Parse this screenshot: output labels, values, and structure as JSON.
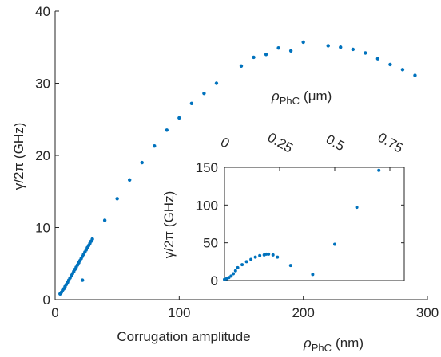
{
  "chart_data": [
    {
      "type": "scatter",
      "xlabel": "Corrugation amplitude",
      "ylabel": "γ/2π (GHz)",
      "xlim": [
        0,
        300
      ],
      "ylim": [
        0,
        40
      ],
      "xticks": [
        0,
        100,
        200,
        300
      ],
      "yticks": [
        0,
        10,
        20,
        30,
        40
      ],
      "xtick_labels": [
        "0",
        "100",
        "200",
        "300"
      ],
      "ytick_labels": [
        "0",
        "10",
        "20",
        "30",
        "40"
      ],
      "grid": false,
      "color": "#0072bd",
      "series": [
        {
          "x": [
            4,
            5,
            6,
            7,
            8,
            9,
            10,
            11,
            12,
            13,
            14,
            15,
            16,
            17,
            18,
            19,
            20,
            21,
            22,
            23,
            24,
            25,
            26,
            27,
            28,
            29,
            30,
            22,
            40,
            50,
            60,
            70,
            80,
            90,
            100,
            110,
            120,
            130,
            150,
            160,
            170,
            180,
            190,
            200,
            220,
            230,
            240,
            250,
            260,
            270,
            280,
            290
          ],
          "y": [
            0.8,
            1.0,
            1.3,
            1.5,
            1.8,
            2.1,
            2.4,
            2.7,
            3.0,
            3.3,
            3.6,
            3.9,
            4.2,
            4.5,
            4.8,
            5.1,
            5.4,
            5.7,
            6.0,
            6.3,
            6.6,
            6.9,
            7.2,
            7.5,
            7.8,
            8.1,
            8.4,
            2.7,
            11.0,
            14.0,
            16.6,
            19.0,
            21.3,
            23.5,
            25.2,
            27.2,
            28.6,
            30.0,
            32.4,
            33.6,
            34.0,
            34.9,
            34.5,
            35.7,
            35.2,
            35.0,
            34.7,
            34.2,
            33.4,
            32.6,
            31.9,
            31.1
          ]
        }
      ]
    },
    {
      "type": "scatter",
      "inset": true,
      "xlabel": "ρPhC (nm)",
      "xlabel_main": "ρ",
      "xlabel_sub": "PhC",
      "xlabel_unit": "(nm)",
      "ylabel": "γ/2π (GHz)",
      "top_xlabel_main": "ρ",
      "top_xlabel_sub": "PhC",
      "top_xlabel_unit": "(μm)",
      "top_xticks": [
        0,
        0.25,
        0.5,
        0.75
      ],
      "top_xtick_labels": [
        "0",
        "0.25",
        "0.5",
        "0.75"
      ],
      "ylim": [
        0,
        150
      ],
      "yticks": [
        0,
        50,
        100,
        150
      ],
      "ytick_labels": [
        "0",
        "50",
        "100",
        "150"
      ],
      "grid": false,
      "color": "#0072bd",
      "series": [
        {
          "x": [
            0,
            0.01,
            0.02,
            0.03,
            0.04,
            0.05,
            0.06,
            0.08,
            0.1,
            0.12,
            0.14,
            0.16,
            0.18,
            0.19,
            0.2,
            0.22,
            0.24,
            0.3,
            0.4,
            0.5,
            0.6,
            0.7
          ],
          "y": [
            1.5,
            2.5,
            4,
            6,
            9,
            13,
            17,
            21,
            25,
            28,
            31,
            33,
            34,
            35,
            35,
            34,
            31,
            20,
            8,
            48,
            97,
            146
          ]
        }
      ]
    }
  ]
}
